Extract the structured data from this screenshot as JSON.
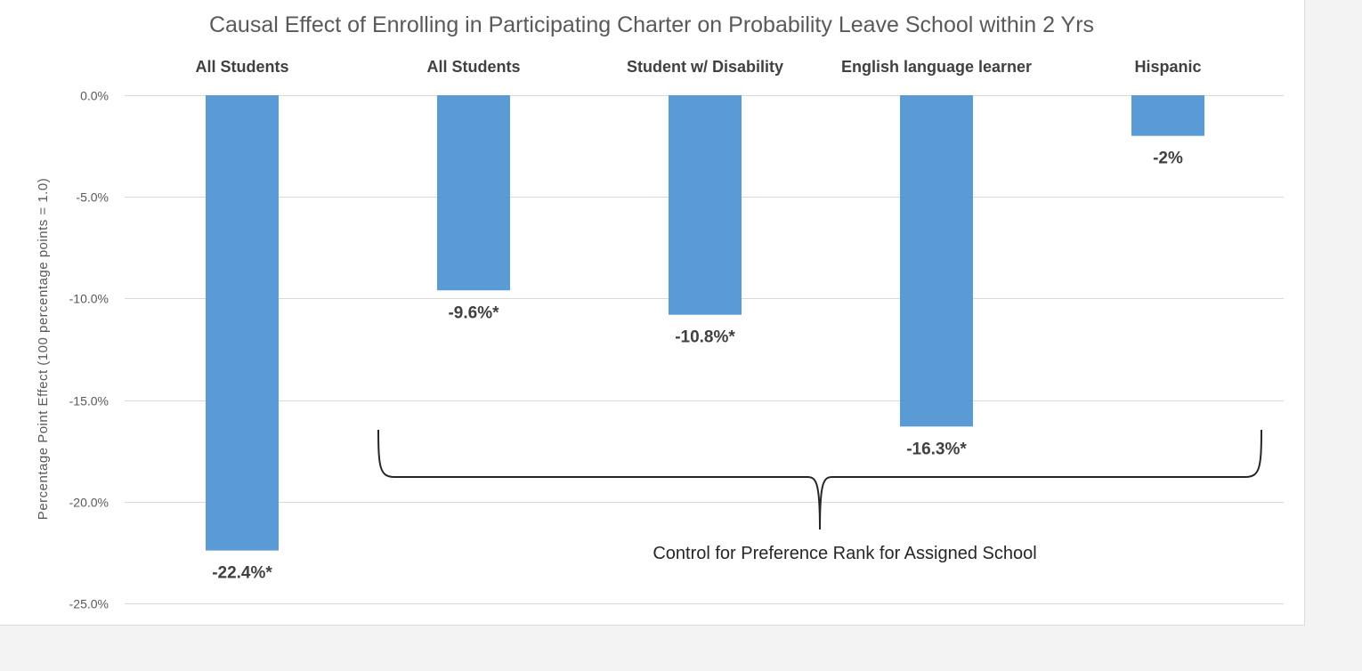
{
  "chart_data": {
    "type": "bar",
    "title": "Causal Effect of Enrolling in Participating Charter on Probability Leave School within 2 Yrs",
    "ylabel": "Percentage Point Effect  (100 percentage  points  = 1.0)",
    "xlabel": "",
    "categories": [
      "All Students",
      "All Students",
      "Student w/ Disability",
      "English language learner",
      "Hispanic"
    ],
    "values": [
      -22.4,
      -9.6,
      -10.8,
      -16.3,
      -2.0
    ],
    "data_labels": [
      "-22.4%*",
      "-9.6%*",
      "-10.8%*",
      "-16.3%*",
      "-2%"
    ],
    "ylim": [
      -25,
      0
    ],
    "yticks": [
      0,
      -5,
      -10,
      -15,
      -20,
      -25
    ],
    "ytick_labels": [
      "0.0%",
      "-5.0%",
      "-10.0%",
      "-15.0%",
      "-20.0%",
      "-25.0%"
    ],
    "bar_color": "#5b9bd5",
    "grid": true,
    "category_labels_position": "top",
    "annotation": {
      "text": "Control for Preference Rank for Assigned School",
      "spans_categories": [
        1,
        4
      ]
    }
  }
}
